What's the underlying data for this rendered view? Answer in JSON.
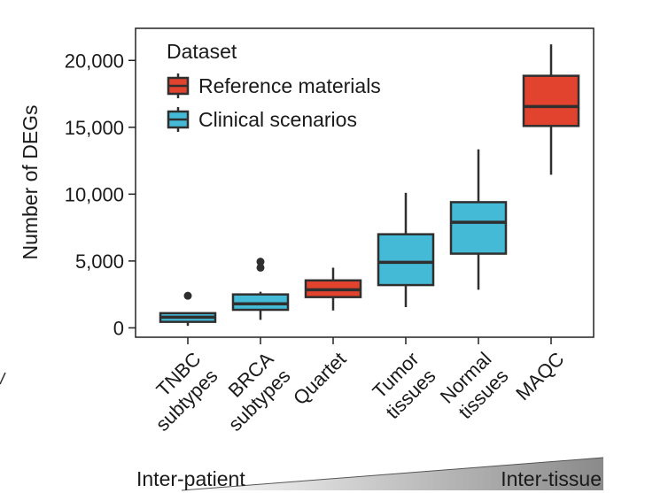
{
  "chart_data": {
    "type": "boxplot",
    "ylabel": "Number of DEGs",
    "ylim": [
      -700,
      22400
    ],
    "y_ticks": [
      {
        "value": 0,
        "label": "0"
      },
      {
        "value": 5000,
        "label": "5,000"
      },
      {
        "value": 10000,
        "label": "10,000"
      },
      {
        "value": 15000,
        "label": "15,000"
      },
      {
        "value": 20000,
        "label": "20,000"
      }
    ],
    "legend": {
      "title": "Dataset",
      "position": "top-left",
      "items": [
        {
          "label": "Reference materials",
          "color": "#e2432e"
        },
        {
          "label": "Clinical scenarios",
          "color": "#45bad6"
        }
      ]
    },
    "boxes": [
      {
        "label_lines": [
          "TNBC",
          "subtypes"
        ],
        "group": "Clinical scenarios",
        "color": "#45bad6",
        "whisker_low": 150,
        "q1": 450,
        "median": 800,
        "q3": 1100,
        "whisker_high": 1150,
        "outliers": [
          2400
        ]
      },
      {
        "label_lines": [
          "BRCA",
          "subtypes"
        ],
        "group": "Clinical scenarios",
        "color": "#45bad6",
        "whisker_low": 600,
        "q1": 1350,
        "median": 1800,
        "q3": 2500,
        "whisker_high": 2700,
        "outliers": [
          4500,
          4950
        ]
      },
      {
        "label_lines": [
          "Quartet"
        ],
        "group": "Reference materials",
        "color": "#e2432e",
        "whisker_low": 1300,
        "q1": 2300,
        "median": 2850,
        "q3": 3550,
        "whisker_high": 4500,
        "outliers": []
      },
      {
        "label_lines": [
          "Tumor",
          "tissues"
        ],
        "group": "Clinical scenarios",
        "color": "#45bad6",
        "whisker_low": 1550,
        "q1": 3200,
        "median": 4900,
        "q3": 7000,
        "whisker_high": 10100,
        "outliers": []
      },
      {
        "label_lines": [
          "Normal",
          "tissues"
        ],
        "group": "Clinical scenarios",
        "color": "#45bad6",
        "whisker_low": 2850,
        "q1": 5550,
        "median": 7900,
        "q3": 9400,
        "whisker_high": 13350,
        "outliers": []
      },
      {
        "label_lines": [
          "MAQC"
        ],
        "group": "Reference materials",
        "color": "#e2432e",
        "whisker_low": 11450,
        "q1": 15100,
        "median": 16550,
        "q3": 18850,
        "whisker_high": 21200,
        "outliers": []
      }
    ],
    "gradient": {
      "left_label": "Inter-patient",
      "right_label": "Inter-tissue"
    }
  }
}
